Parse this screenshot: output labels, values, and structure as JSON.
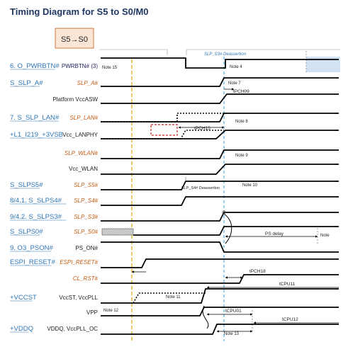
{
  "title": "Timing Diagram for S5 to S0/M0",
  "state_box": "S5→S0",
  "colors": {
    "title": "#1f3864",
    "blue_label": "#2e75b6",
    "orange_label": "#c55a11",
    "state_box_fill": "#fbe5d6",
    "state_box_border": "#c55a11",
    "yellow_line": "#e6a817",
    "cyan_line": "#3aa0d8",
    "red_box": "#d02020"
  },
  "rows": [
    {
      "group": "6. O_PWRBTN#",
      "signal": "PWRBTN# (3)",
      "signal_style": "dark"
    },
    {
      "group": "S_SLP_A#",
      "signal": "SLP_A#",
      "signal_style": "orange"
    },
    {
      "group": "",
      "signal": "Platform VccASW",
      "signal_style": "black"
    },
    {
      "group": "7. S_SLP_LAN#",
      "signal": "SLP_LAN#",
      "signal_style": "orange"
    },
    {
      "group": "+L1_I219_+3VSB",
      "signal": "Vcc_LANPHY",
      "signal_style": "black"
    },
    {
      "group": "",
      "signal": "SLP_WLAN#",
      "signal_style": "orange"
    },
    {
      "group": "",
      "signal": "Vcc_WLAN",
      "signal_style": "black"
    },
    {
      "group": "S_SLPS5#",
      "signal": "SLP_S5#",
      "signal_style": "orange"
    },
    {
      "group": "8/4.1. S_SLPS4#",
      "signal": "SLP_S4#",
      "signal_style": "orange"
    },
    {
      "group": "9/4.2. S_SLPS3#",
      "signal": "SLP_S3#",
      "signal_style": "orange"
    },
    {
      "group": "S_SLPS0#",
      "signal": "SLP_S0#",
      "signal_style": "orange"
    },
    {
      "group": "9. O3_PSON#",
      "signal": "PS_ON#",
      "signal_style": "black"
    },
    {
      "group": "ESPI_RESET#",
      "signal": "ESPI_RESET#",
      "signal_style": "orange"
    },
    {
      "group": "",
      "signal": "CL_RST#",
      "signal_style": "orange"
    },
    {
      "group": "+VCCST",
      "signal": "VccST, VccPLL",
      "signal_style": "black"
    },
    {
      "group": "",
      "signal": "VPP",
      "signal_style": "black"
    },
    {
      "group": "+VDDQ",
      "signal": "VDDQ, VccPLL_OC",
      "signal_style": "black"
    }
  ],
  "annotations": {
    "slp_s3_deassertion": "SLP_S3# Deassertion",
    "slp_s4_deassertion": "SLP_S4# Deassertion",
    "note_15": "Note 15",
    "note_4": "Note 4",
    "note_7": "Note 7",
    "tpch09": "tPCH09",
    "note_8": "Note 8",
    "tpch15": "tPCH15",
    "note_9": "Note 9",
    "note_10": "Note 10",
    "ps_delay": "PS delay",
    "note_right": "Note",
    "tpch18": "tPCH18",
    "tcpu11": "tCPU11",
    "note_11": "Note 11",
    "note_12": "Note 12",
    "tcpu01": "tCPU01",
    "tcpu12": "tCPU12",
    "note_13": "Note 13"
  }
}
